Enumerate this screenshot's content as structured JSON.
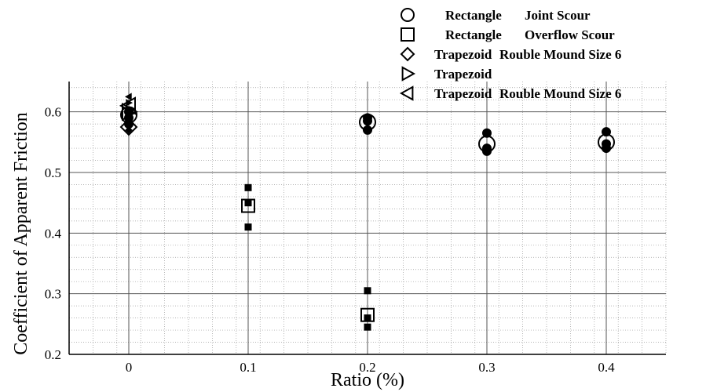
{
  "chart_data": {
    "type": "scatter",
    "xlabel": "Ratio (%)",
    "ylabel": "Coefficient of Apparent Friction",
    "xlim": [
      -0.05,
      0.45
    ],
    "ylim": [
      0.2,
      0.65
    ],
    "xticks": [
      0,
      0.1,
      0.2,
      0.3,
      0.4
    ],
    "xtick_labels": [
      "0",
      "0.1",
      "0.2",
      "0.3",
      "0.4"
    ],
    "yticks": [
      0.2,
      0.3,
      0.4,
      0.5,
      0.6
    ],
    "ytick_labels": [
      "0.2",
      "0.3",
      "0.4",
      "0.5",
      "0.6"
    ],
    "grid": true,
    "legend_position": "top-right",
    "legend": [
      {
        "marker": "circle",
        "label_shape": "Rectangle",
        "label_desc": "Joint Scour"
      },
      {
        "marker": "square",
        "label_shape": "Rectangle",
        "label_desc": "Overflow Scour"
      },
      {
        "marker": "diamond",
        "label_shape": "Trapezoid",
        "label_desc": "Rouble Mound Size 6"
      },
      {
        "marker": "triangle-right",
        "label_shape": "Trapezoid",
        "label_desc": ""
      },
      {
        "marker": "triangle-left",
        "label_shape": "Trapezoid",
        "label_desc": "Rouble Mound Size 6"
      }
    ],
    "series": [
      {
        "marker": "circle",
        "mean": [
          [
            0,
            0.595
          ],
          [
            0.2,
            0.583
          ],
          [
            0.3,
            0.547
          ],
          [
            0.4,
            0.55
          ]
        ],
        "samples": [
          [
            0,
            0.6
          ],
          [
            0,
            0.59
          ],
          [
            0,
            0.58
          ],
          [
            0.2,
            0.59
          ],
          [
            0.2,
            0.585
          ],
          [
            0.2,
            0.57
          ],
          [
            0.3,
            0.565
          ],
          [
            0.3,
            0.54
          ],
          [
            0.3,
            0.535
          ],
          [
            0.4,
            0.567
          ],
          [
            0.4,
            0.547
          ],
          [
            0.4,
            0.54
          ]
        ]
      },
      {
        "marker": "square",
        "mean": [
          [
            0.1,
            0.445
          ],
          [
            0.2,
            0.265
          ]
        ],
        "samples": [
          [
            0.1,
            0.475
          ],
          [
            0.1,
            0.45
          ],
          [
            0.1,
            0.41
          ],
          [
            0.2,
            0.305
          ],
          [
            0.2,
            0.26
          ],
          [
            0.2,
            0.245
          ]
        ]
      },
      {
        "marker": "diamond",
        "mean": [
          [
            0,
            0.575
          ]
        ],
        "samples": [
          [
            0,
            0.57
          ],
          [
            0,
            0.58
          ]
        ]
      },
      {
        "marker": "triangle-right",
        "mean": [
          [
            0,
            0.6
          ]
        ],
        "samples": [
          [
            0,
            0.615
          ]
        ]
      },
      {
        "marker": "triangle-left",
        "mean": [
          [
            0,
            0.61
          ]
        ],
        "samples": [
          [
            0,
            0.625
          ]
        ]
      }
    ]
  }
}
